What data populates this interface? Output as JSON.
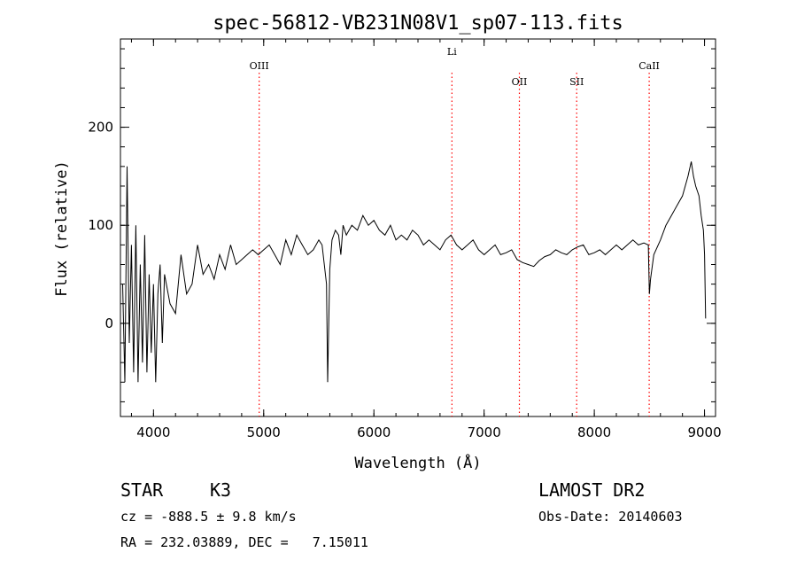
{
  "chart_data": {
    "type": "line",
    "title": "spec-56812-VB231N08V1_sp07-113.fits",
    "xlabel": "Wavelength (Å)",
    "ylabel": "Flux (relative)",
    "xlim": [
      3700,
      9100
    ],
    "ylim": [
      -95,
      290
    ],
    "xticks": [
      4000,
      5000,
      6000,
      7000,
      8000,
      9000
    ],
    "yticks": [
      0,
      100,
      200
    ],
    "grid": false,
    "line_color": "#000000",
    "marker_color": "#ff0000",
    "series": [
      {
        "values_x": [
          3720,
          3740,
          3760,
          3780,
          3800,
          3820,
          3840,
          3860,
          3880,
          3900,
          3920,
          3940,
          3960,
          3980,
          4000,
          4020,
          4040,
          4060,
          4080,
          4100,
          4150,
          4200,
          4250,
          4300,
          4350,
          4400,
          4450,
          4500,
          4550,
          4600,
          4650,
          4700,
          4750,
          4800,
          4850,
          4900,
          4950,
          5000,
          5050,
          5100,
          5150,
          5200,
          5250,
          5300,
          5350,
          5400,
          5450,
          5500,
          5530,
          5550,
          5570,
          5580,
          5600,
          5620,
          5650,
          5680,
          5700,
          5720,
          5750,
          5800,
          5850,
          5900,
          5950,
          6000,
          6050,
          6100,
          6150,
          6200,
          6250,
          6300,
          6350,
          6400,
          6450,
          6500,
          6550,
          6600,
          6650,
          6700,
          6750,
          6800,
          6850,
          6900,
          6950,
          7000,
          7050,
          7100,
          7150,
          7200,
          7250,
          7300,
          7350,
          7400,
          7450,
          7500,
          7550,
          7600,
          7650,
          7700,
          7750,
          7800,
          7850,
          7900,
          7950,
          8000,
          8050,
          8100,
          8150,
          8200,
          8250,
          8300,
          8350,
          8400,
          8450,
          8490,
          8500,
          8510,
          8540,
          8600,
          8650,
          8700,
          8750,
          8800,
          8850,
          8880,
          8900,
          8920,
          8950,
          8970,
          8990,
          9000,
          9010
        ],
        "values_y": [
          40,
          -60,
          160,
          -20,
          80,
          -50,
          100,
          -60,
          60,
          -40,
          90,
          -50,
          50,
          -30,
          40,
          -60,
          30,
          60,
          -20,
          50,
          20,
          10,
          70,
          30,
          40,
          80,
          50,
          60,
          45,
          70,
          55,
          80,
          60,
          65,
          70,
          75,
          70,
          75,
          80,
          70,
          60,
          85,
          70,
          90,
          80,
          70,
          75,
          85,
          80,
          60,
          40,
          -60,
          55,
          85,
          95,
          90,
          70,
          100,
          90,
          100,
          95,
          110,
          100,
          105,
          95,
          90,
          100,
          85,
          90,
          85,
          95,
          90,
          80,
          85,
          80,
          75,
          85,
          90,
          80,
          75,
          80,
          85,
          75,
          70,
          75,
          80,
          70,
          72,
          75,
          65,
          62,
          60,
          58,
          64,
          68,
          70,
          75,
          72,
          70,
          75,
          78,
          80,
          70,
          72,
          75,
          70,
          75,
          80,
          75,
          80,
          85,
          80,
          82,
          80,
          30,
          45,
          70,
          85,
          100,
          110,
          120,
          130,
          150,
          165,
          150,
          140,
          130,
          110,
          95,
          70,
          5
        ]
      }
    ],
    "line_markers": [
      {
        "label": "OIII",
        "x": 4959
      },
      {
        "label": "Li",
        "x": 6708
      },
      {
        "label": "OII",
        "x": 7320
      },
      {
        "label": "SII",
        "x": 7840
      },
      {
        "label": "CaII",
        "x": 8498
      }
    ]
  },
  "info": {
    "object_type": "STAR",
    "subclass": "K3",
    "survey": "LAMOST DR2",
    "redshift_line": "cz = -888.5 ± 9.8 km/s",
    "obs_date_line": "Obs-Date: 20140603",
    "coords_line": "RA = 232.03889, DEC =   7.15011"
  }
}
